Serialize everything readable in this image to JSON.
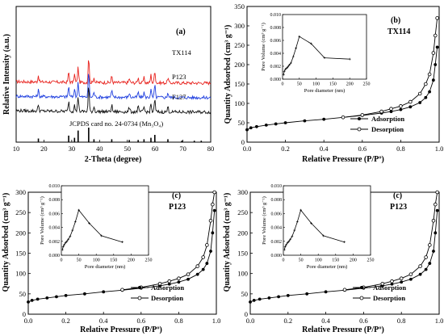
{
  "chart_data": [
    {
      "type": "line",
      "panel_label": "(a)",
      "xlabel": "2-Theta (degree)",
      "ylabel": "Relative Intensity (a.u.)",
      "xlim": [
        10,
        80
      ],
      "x_ticks": [
        10,
        20,
        30,
        40,
        50,
        60,
        70,
        80
      ],
      "series": [
        {
          "name": "TX114",
          "color": "#e8231e",
          "offset": 2.6
        },
        {
          "name": "P123",
          "color": "#1f3fdf",
          "offset": 1.6
        },
        {
          "name": "F127",
          "color": "#111111",
          "offset": 0.6
        }
      ],
      "peaks": [
        {
          "x": 18.0,
          "h": 0.45
        },
        {
          "x": 28.9,
          "h": 0.7
        },
        {
          "x": 31.0,
          "h": 0.55
        },
        {
          "x": 32.3,
          "h": 1.05
        },
        {
          "x": 36.1,
          "h": 1.8
        },
        {
          "x": 38.0,
          "h": 0.35
        },
        {
          "x": 44.4,
          "h": 0.45
        },
        {
          "x": 50.7,
          "h": 0.3
        },
        {
          "x": 53.9,
          "h": 0.35
        },
        {
          "x": 56.0,
          "h": 0.35
        },
        {
          "x": 58.5,
          "h": 0.55
        },
        {
          "x": 59.9,
          "h": 0.85
        },
        {
          "x": 64.6,
          "h": 0.35
        }
      ],
      "reference": {
        "label": "JCPDS card no. 24-0734 (Mn₃O₄)",
        "lines": [
          {
            "x": 18.0,
            "h": 0.25
          },
          {
            "x": 28.9,
            "h": 0.45
          },
          {
            "x": 31.0,
            "h": 0.3
          },
          {
            "x": 32.3,
            "h": 0.8
          },
          {
            "x": 36.1,
            "h": 1.0
          },
          {
            "x": 38.0,
            "h": 0.2
          },
          {
            "x": 44.4,
            "h": 0.2
          },
          {
            "x": 50.7,
            "h": 0.15
          },
          {
            "x": 53.9,
            "h": 0.15
          },
          {
            "x": 56.0,
            "h": 0.2
          },
          {
            "x": 58.5,
            "h": 0.3
          },
          {
            "x": 59.9,
            "h": 0.5
          },
          {
            "x": 64.6,
            "h": 0.2
          },
          {
            "x": 69.6,
            "h": 0.1
          },
          {
            "x": 74.1,
            "h": 0.1
          },
          {
            "x": 76.6,
            "h": 0.1
          }
        ]
      }
    },
    {
      "type": "line",
      "panel_label": "(b)",
      "sample": "TX114",
      "xlabel": "Relative Pressure (P/Pº)",
      "ylabel": "Quantity Adsorbed (cm³ g⁻¹)",
      "xlim": [
        0,
        1.0
      ],
      "ylim": [
        0,
        350
      ],
      "x_ticks": [
        "0.0",
        "0.2",
        "0.4",
        "0.6",
        "0.8",
        "1.0"
      ],
      "y_ticks": [
        0,
        50,
        100,
        150,
        200,
        250,
        300,
        350
      ],
      "legend": [
        "Adsorption",
        "Desorption"
      ],
      "adsorption": {
        "x": [
          0.0,
          0.02,
          0.05,
          0.1,
          0.15,
          0.2,
          0.3,
          0.4,
          0.5,
          0.6,
          0.7,
          0.75,
          0.8,
          0.85,
          0.9,
          0.93,
          0.95,
          0.97,
          0.98,
          0.99
        ],
        "y": [
          32,
          37,
          40,
          44,
          47,
          50,
          55,
          59,
          64,
          69,
          75,
          79,
          84,
          91,
          102,
          115,
          130,
          160,
          200,
          245
        ]
      },
      "desorption": {
        "x": [
          0.99,
          0.98,
          0.97,
          0.95,
          0.93,
          0.9,
          0.85,
          0.8,
          0.75,
          0.7,
          0.6,
          0.5
        ],
        "y": [
          320,
          275,
          230,
          175,
          150,
          125,
          104,
          93,
          86,
          79,
          70,
          64
        ]
      },
      "inset": {
        "xlabel": "Pore diameter (nm)",
        "ylabel": "Pore Volume (cm³ g⁻¹)",
        "xlim": [
          0,
          250
        ],
        "ylim": [
          0,
          0.01
        ],
        "x_ticks": [
          0,
          50,
          100,
          150,
          200,
          250
        ],
        "y_ticks": [
          "0.000",
          "0.002",
          "0.004",
          "0.006",
          "0.008",
          "0.010"
        ],
        "x": [
          3,
          5,
          8,
          12,
          16,
          20,
          25,
          32,
          40,
          50,
          85,
          125,
          200
        ],
        "y": [
          0.0007,
          0.0012,
          0.0015,
          0.0017,
          0.0019,
          0.0022,
          0.0025,
          0.0035,
          0.0048,
          0.0066,
          0.0055,
          0.0033,
          0.0031
        ]
      }
    },
    {
      "type": "line",
      "panel_label": "(c)",
      "sample": "P123",
      "xlabel": "Relative Pressure (P/Pº)",
      "ylabel": "Quantity Adsorbed (cm³ g⁻¹)",
      "xlim": [
        0,
        1.0
      ],
      "ylim": [
        0,
        300
      ],
      "x_ticks": [
        "0.0",
        "0.2",
        "0.4",
        "0.6",
        "0.8",
        "1.0"
      ],
      "y_ticks": [
        0,
        50,
        100,
        150,
        200,
        250,
        300
      ],
      "legend": [
        "Adsorption",
        "Desorption"
      ],
      "adsorption": {
        "x": [
          0.0,
          0.02,
          0.05,
          0.1,
          0.15,
          0.2,
          0.3,
          0.4,
          0.5,
          0.6,
          0.7,
          0.75,
          0.8,
          0.85,
          0.9,
          0.93,
          0.95,
          0.97,
          0.98,
          0.99
        ],
        "y": [
          30,
          34,
          37,
          40,
          43,
          46,
          50,
          55,
          59,
          64,
          70,
          74,
          79,
          86,
          98,
          110,
          125,
          155,
          200,
          255
        ]
      },
      "desorption": {
        "x": [
          0.99,
          0.98,
          0.97,
          0.95,
          0.93,
          0.9,
          0.85,
          0.8,
          0.75,
          0.7,
          0.6,
          0.5
        ],
        "y": [
          300,
          270,
          230,
          170,
          140,
          118,
          98,
          88,
          81,
          75,
          66,
          60
        ]
      },
      "inset": {
        "xlabel": "Pore diameter (nm)",
        "ylabel": "Pore Volume (cm³ g⁻¹)",
        "xlim": [
          0,
          250
        ],
        "ylim": [
          0,
          0.01
        ],
        "x_ticks": [
          0,
          50,
          100,
          150,
          200,
          250
        ],
        "y_ticks": [
          "0.000",
          "0.002",
          "0.004",
          "0.006",
          "0.008",
          "0.010"
        ],
        "x": [
          3,
          5,
          8,
          12,
          16,
          20,
          25,
          32,
          40,
          50,
          80,
          115,
          175
        ],
        "y": [
          0.0008,
          0.0012,
          0.0015,
          0.0018,
          0.002,
          0.0023,
          0.0027,
          0.0036,
          0.0048,
          0.0065,
          0.0046,
          0.0028,
          0.0019
        ]
      }
    },
    {
      "type": "line",
      "panel_label": "(c)",
      "sample": "P123",
      "xlabel": "Relative Pressure (P/Pº)",
      "ylabel": "Quantity Adsorbed (cm³ g⁻¹)",
      "xlim": [
        0,
        1.0
      ],
      "ylim": [
        0,
        300
      ],
      "x_ticks": [
        "0.0",
        "0.2",
        "0.4",
        "0.6",
        "0.8",
        "1.0"
      ],
      "y_ticks": [
        0,
        50,
        100,
        150,
        200,
        250,
        300
      ],
      "legend": [
        "Adsorption",
        "Desorption"
      ],
      "adsorption": {
        "x": [
          0.0,
          0.02,
          0.05,
          0.1,
          0.15,
          0.2,
          0.3,
          0.4,
          0.5,
          0.6,
          0.7,
          0.75,
          0.8,
          0.85,
          0.9,
          0.93,
          0.95,
          0.97,
          0.98,
          0.99
        ],
        "y": [
          30,
          34,
          37,
          40,
          43,
          46,
          50,
          55,
          59,
          64,
          70,
          74,
          79,
          86,
          98,
          110,
          125,
          155,
          200,
          255
        ]
      },
      "desorption": {
        "x": [
          0.99,
          0.98,
          0.97,
          0.95,
          0.93,
          0.9,
          0.85,
          0.8,
          0.75,
          0.7,
          0.6,
          0.5
        ],
        "y": [
          300,
          270,
          230,
          170,
          140,
          118,
          98,
          88,
          81,
          75,
          66,
          60
        ]
      },
      "inset": {
        "xlabel": "Pore diameter (nm)",
        "ylabel": "Pore Volume (cm³ g⁻¹)",
        "xlim": [
          0,
          250
        ],
        "ylim": [
          0,
          0.01
        ],
        "x_ticks": [
          0,
          50,
          100,
          150,
          200,
          250
        ],
        "y_ticks": [
          "0.000",
          "0.002",
          "0.004",
          "0.006",
          "0.008",
          "0.010"
        ],
        "x": [
          3,
          5,
          8,
          12,
          16,
          20,
          25,
          32,
          40,
          50,
          80,
          115,
          175
        ],
        "y": [
          0.0008,
          0.0012,
          0.0015,
          0.0018,
          0.002,
          0.0023,
          0.0027,
          0.0036,
          0.0048,
          0.0065,
          0.0046,
          0.0028,
          0.0019
        ]
      }
    }
  ]
}
